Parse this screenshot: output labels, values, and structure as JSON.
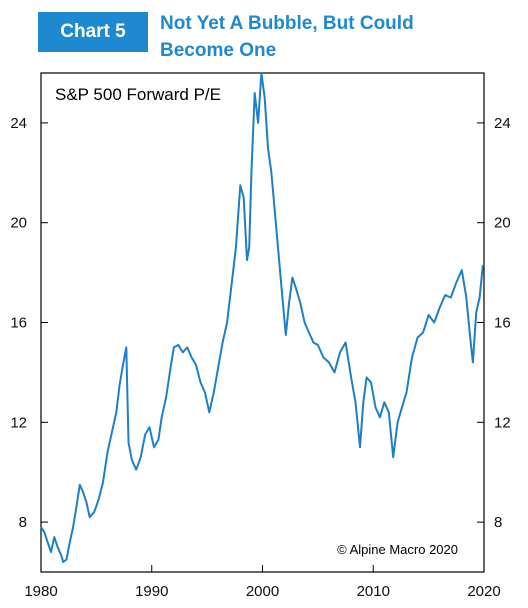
{
  "header": {
    "badge": "Chart 5",
    "title_line1": "Not Yet A Bubble, But Could",
    "title_line2": "Become One"
  },
  "colors": {
    "accent": "#1e88d0",
    "series": "#1e7fc6"
  },
  "chart_data": {
    "type": "line",
    "title": "S&P 500 Forward P/E",
    "copyright": "© Alpine Macro 2020",
    "xlim": [
      1980,
      2020
    ],
    "ylim": [
      6.0,
      26.0
    ],
    "xticks": [
      1980,
      1990,
      2000,
      2010,
      2020
    ],
    "yticks": [
      8,
      12,
      16,
      20,
      24
    ],
    "grid": false,
    "series": [
      {
        "name": "",
        "x": [
          1980.0,
          1980.3,
          1980.6,
          1980.9,
          1981.2,
          1981.5,
          1981.8,
          1982.0,
          1982.3,
          1982.6,
          1982.9,
          1983.2,
          1983.5,
          1983.8,
          1984.1,
          1984.4,
          1984.8,
          1985.2,
          1985.6,
          1986.0,
          1986.4,
          1986.8,
          1987.1,
          1987.4,
          1987.7,
          1987.9,
          1988.2,
          1988.6,
          1989.0,
          1989.4,
          1989.8,
          1990.2,
          1990.6,
          1990.9,
          1991.3,
          1991.7,
          1992.0,
          1992.4,
          1992.8,
          1993.2,
          1993.6,
          1994.0,
          1994.4,
          1994.8,
          1995.2,
          1995.6,
          1996.0,
          1996.4,
          1996.8,
          1997.2,
          1997.6,
          1998.0,
          1998.3,
          1998.6,
          1998.8,
          1999.0,
          1999.3,
          1999.6,
          1999.9,
          2000.2,
          2000.5,
          2000.8,
          2001.1,
          2001.4,
          2001.8,
          2002.1,
          2002.4,
          2002.7,
          2003.0,
          2003.4,
          2003.8,
          2004.2,
          2004.6,
          2005.0,
          2005.5,
          2006.0,
          2006.5,
          2007.0,
          2007.5,
          2008.0,
          2008.4,
          2008.8,
          2009.1,
          2009.4,
          2009.8,
          2010.2,
          2010.6,
          2011.0,
          2011.4,
          2011.8,
          2012.2,
          2012.6,
          2013.0,
          2013.5,
          2014.0,
          2014.5,
          2015.0,
          2015.5,
          2016.0,
          2016.5,
          2017.0,
          2017.5,
          2018.0,
          2018.4,
          2018.8,
          2019.0,
          2019.3,
          2019.6,
          2019.9
        ],
        "values": [
          7.8,
          7.6,
          7.2,
          6.8,
          7.4,
          7.0,
          6.7,
          6.4,
          6.5,
          7.2,
          7.8,
          8.6,
          9.5,
          9.2,
          8.8,
          8.2,
          8.4,
          8.9,
          9.6,
          10.8,
          11.6,
          12.4,
          13.5,
          14.3,
          15.0,
          11.2,
          10.5,
          10.1,
          10.6,
          11.5,
          11.8,
          11.0,
          11.3,
          12.2,
          13.0,
          14.2,
          15.0,
          15.1,
          14.8,
          15.0,
          14.6,
          14.3,
          13.6,
          13.2,
          12.4,
          13.2,
          14.2,
          15.2,
          16.0,
          17.5,
          19.0,
          21.5,
          21.0,
          18.5,
          19.0,
          22.0,
          25.2,
          24.0,
          26.0,
          25.0,
          23.0,
          22.0,
          20.5,
          19.0,
          17.0,
          15.5,
          16.8,
          17.8,
          17.4,
          16.8,
          16.0,
          15.6,
          15.2,
          15.1,
          14.6,
          14.4,
          14.0,
          14.8,
          15.2,
          13.8,
          12.8,
          11.0,
          12.8,
          13.8,
          13.6,
          12.6,
          12.2,
          12.8,
          12.4,
          10.6,
          12.0,
          12.6,
          13.2,
          14.6,
          15.4,
          15.6,
          16.3,
          16.0,
          16.6,
          17.1,
          17.0,
          17.6,
          18.1,
          17.0,
          15.2,
          14.4,
          16.4,
          17.0,
          18.3
        ]
      }
    ]
  }
}
